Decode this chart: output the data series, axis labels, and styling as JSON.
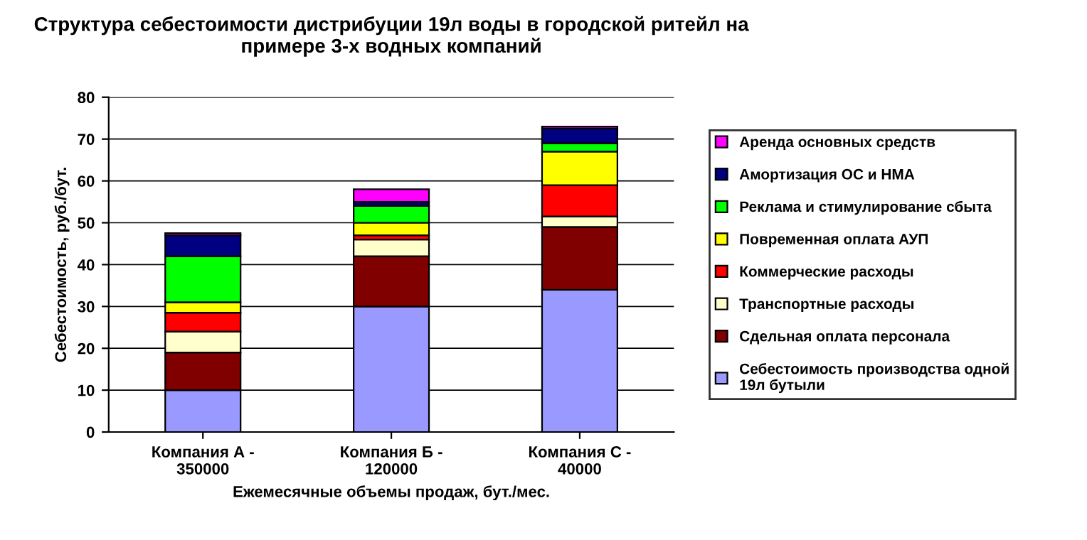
{
  "chart_data": {
    "type": "bar",
    "stacked": true,
    "title": "Структура себестоимости дистрибуции 19л воды в городской ритейл на примере 3-х водных компаний",
    "xlabel": "Ежемесячные объемы продаж, бут./мес.",
    "ylabel": "Себестоимость, руб./бут.",
    "categories": [
      "Компания А -\n350000",
      "Компания Б -\n120000",
      "Компания С -\n40000"
    ],
    "series": [
      {
        "name": "Себестоимость производства одной\n19л бутыли",
        "color": "#9999ff",
        "values": [
          10,
          30,
          34
        ]
      },
      {
        "name": "Сдельная оплата персонала",
        "color": "#800000",
        "values": [
          9,
          12,
          15
        ]
      },
      {
        "name": "Транспортные расходы",
        "color": "#ffffcc",
        "values": [
          5,
          4,
          2.5
        ]
      },
      {
        "name": "Коммерческие расходы",
        "color": "#ff0000",
        "values": [
          4.5,
          1,
          7.5
        ]
      },
      {
        "name": "Повременная оплата АУП",
        "color": "#ffff00",
        "values": [
          2.5,
          3,
          8
        ]
      },
      {
        "name": "Реклама и стимулирование сбыта",
        "color": "#00ff00",
        "values": [
          11,
          4,
          2
        ]
      },
      {
        "name": "Амортизация ОС и НМА",
        "color": "#000080",
        "values": [
          5,
          1,
          3.5
        ]
      },
      {
        "name": "Аренда основных средств",
        "color": "#ff00ff",
        "values": [
          0.5,
          3,
          0.5
        ]
      }
    ],
    "ylim": [
      0,
      80
    ],
    "yticks": [
      0,
      10,
      20,
      30,
      40,
      50,
      60,
      70,
      80
    ],
    "grid": "y",
    "legend": "right"
  }
}
